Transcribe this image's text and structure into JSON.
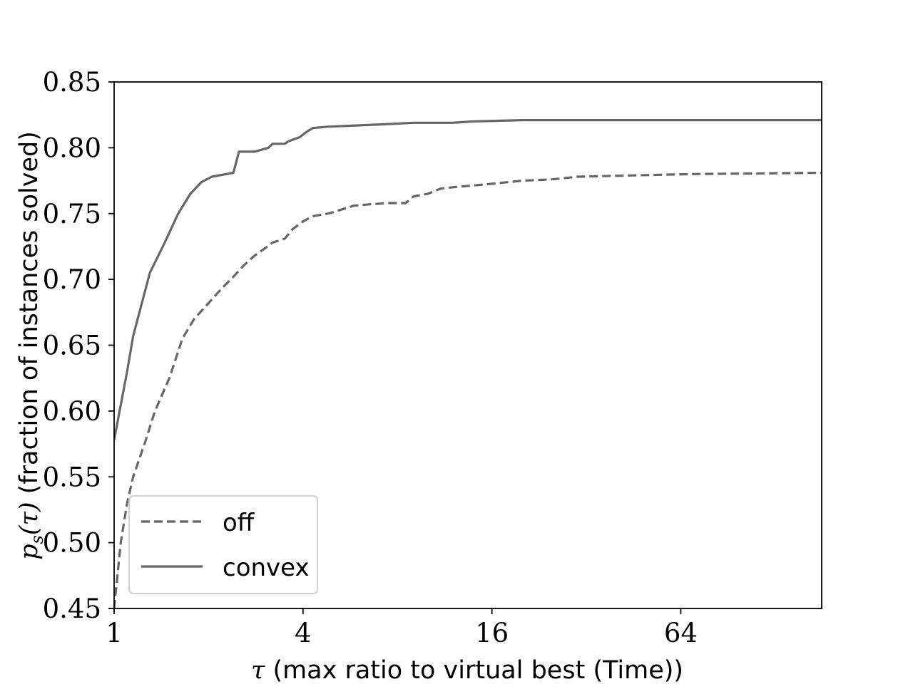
{
  "chart_data": {
    "type": "line",
    "title": "",
    "xlabel": {
      "math": "τ",
      "text": " (max ratio to virtual best (Time))"
    },
    "ylabel": {
      "math": "p",
      "math_sub": "s",
      "math_arg": "(τ)",
      "text": " (fraction of instances solved)"
    },
    "xscale": "log2",
    "xlim": [
      1,
      180
    ],
    "ylim": [
      0.45,
      0.85
    ],
    "grid": false,
    "legend_position": "lower left",
    "xticks": [
      {
        "value": 1,
        "label": "1"
      },
      {
        "value": 4,
        "label": "4"
      },
      {
        "value": 16,
        "label": "16"
      },
      {
        "value": 64,
        "label": "64"
      }
    ],
    "yticks": [
      {
        "value": 0.45,
        "label": "0.45"
      },
      {
        "value": 0.5,
        "label": "0.50"
      },
      {
        "value": 0.55,
        "label": "0.55"
      },
      {
        "value": 0.6,
        "label": "0.60"
      },
      {
        "value": 0.65,
        "label": "0.65"
      },
      {
        "value": 0.7,
        "label": "0.70"
      },
      {
        "value": 0.75,
        "label": "0.75"
      },
      {
        "value": 0.8,
        "label": "0.80"
      },
      {
        "value": 0.85,
        "label": "0.85"
      }
    ],
    "series": [
      {
        "name": "off",
        "style": "dashed",
        "color": "#666666",
        "points": [
          [
            1.0,
            0.45
          ],
          [
            1.05,
            0.5
          ],
          [
            1.1,
            0.53
          ],
          [
            1.15,
            0.55
          ],
          [
            1.25,
            0.575
          ],
          [
            1.35,
            0.6
          ],
          [
            1.5,
            0.625
          ],
          [
            1.65,
            0.655
          ],
          [
            1.8,
            0.67
          ],
          [
            2.0,
            0.682
          ],
          [
            2.2,
            0.693
          ],
          [
            2.4,
            0.702
          ],
          [
            2.6,
            0.711
          ],
          [
            2.8,
            0.718
          ],
          [
            3.0,
            0.723
          ],
          [
            3.2,
            0.728
          ],
          [
            3.5,
            0.731
          ],
          [
            3.7,
            0.738
          ],
          [
            4.0,
            0.744
          ],
          [
            4.3,
            0.748
          ],
          [
            4.8,
            0.75
          ],
          [
            5.3,
            0.753
          ],
          [
            5.8,
            0.756
          ],
          [
            6.5,
            0.757
          ],
          [
            7.5,
            0.758
          ],
          [
            8.5,
            0.758
          ],
          [
            9.0,
            0.763
          ],
          [
            10.0,
            0.765
          ],
          [
            11.0,
            0.769
          ],
          [
            12.0,
            0.77
          ],
          [
            15.0,
            0.772
          ],
          [
            20.0,
            0.775
          ],
          [
            25.0,
            0.776
          ],
          [
            30.0,
            0.778
          ],
          [
            45.0,
            0.779
          ],
          [
            70.0,
            0.78
          ],
          [
            180.0,
            0.781
          ]
        ]
      },
      {
        "name": "convex",
        "style": "solid",
        "color": "#666666",
        "points": [
          [
            1.0,
            0.578
          ],
          [
            1.1,
            0.63
          ],
          [
            1.15,
            0.657
          ],
          [
            1.3,
            0.705
          ],
          [
            1.45,
            0.728
          ],
          [
            1.6,
            0.75
          ],
          [
            1.75,
            0.765
          ],
          [
            1.9,
            0.774
          ],
          [
            2.05,
            0.778
          ],
          [
            2.4,
            0.781
          ],
          [
            2.5,
            0.797
          ],
          [
            2.8,
            0.797
          ],
          [
            3.1,
            0.8
          ],
          [
            3.2,
            0.803
          ],
          [
            3.5,
            0.803
          ],
          [
            3.6,
            0.805
          ],
          [
            3.9,
            0.808
          ],
          [
            4.1,
            0.812
          ],
          [
            4.3,
            0.815
          ],
          [
            4.8,
            0.816
          ],
          [
            6.0,
            0.817
          ],
          [
            7.5,
            0.818
          ],
          [
            9.0,
            0.819
          ],
          [
            12.0,
            0.819
          ],
          [
            14.0,
            0.82
          ],
          [
            20.0,
            0.821
          ],
          [
            180.0,
            0.821
          ]
        ]
      }
    ]
  }
}
